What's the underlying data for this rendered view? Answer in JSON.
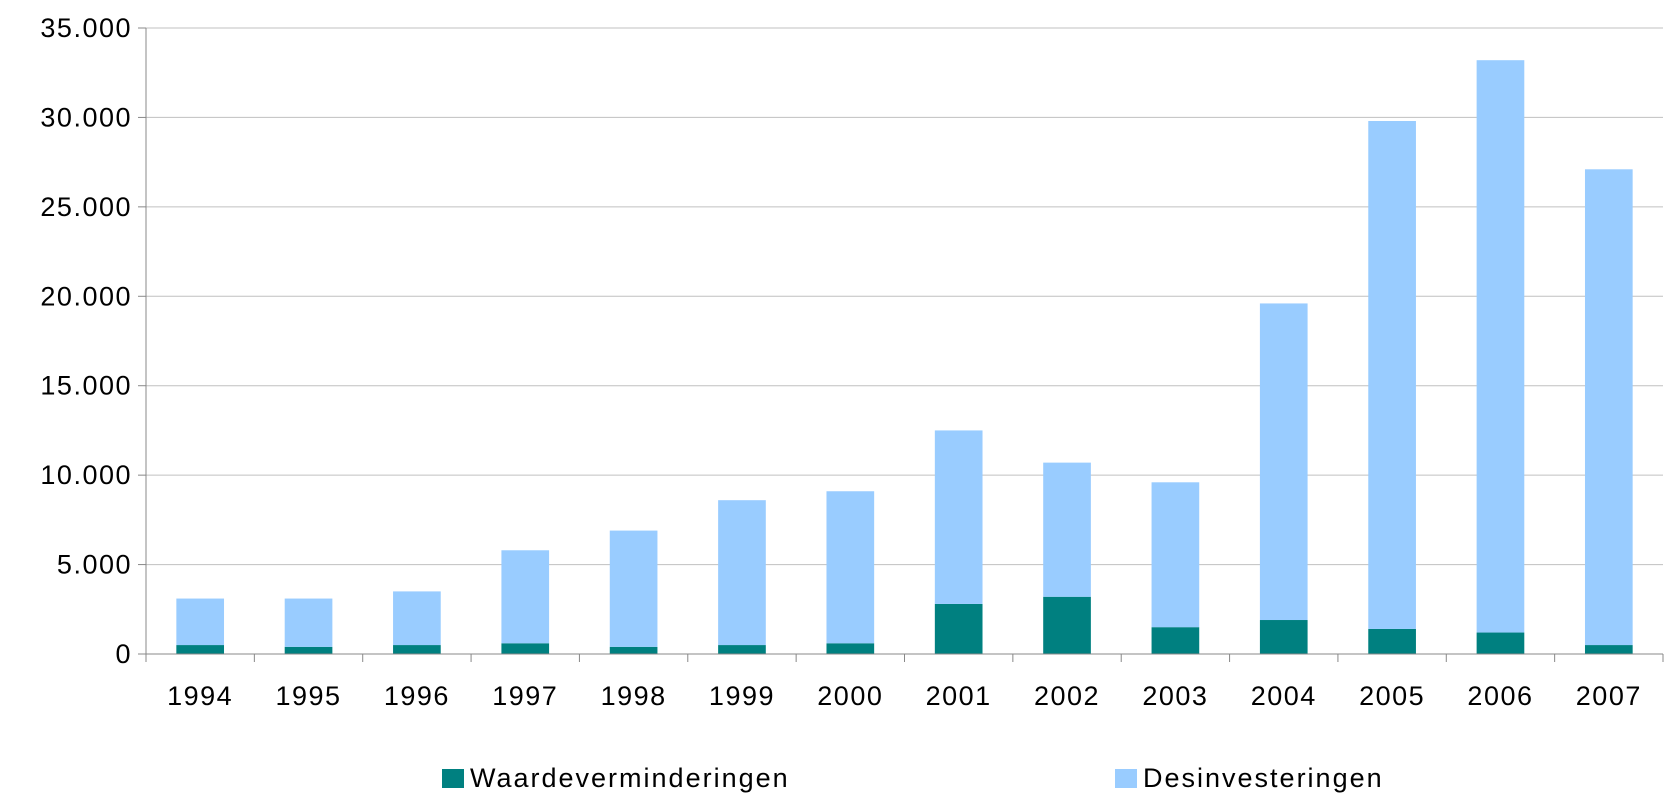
{
  "chart_data": {
    "type": "bar",
    "stacked": true,
    "categories": [
      "1994",
      "1995",
      "1996",
      "1997",
      "1998",
      "1999",
      "2000",
      "2001",
      "2002",
      "2003",
      "2004",
      "2005",
      "2006",
      "2007"
    ],
    "series": [
      {
        "name": "Waardeverminderingen",
        "color": "#008080",
        "values": [
          500,
          400,
          500,
          600,
          400,
          500,
          600,
          2800,
          3200,
          1500,
          1900,
          1400,
          1200,
          500
        ]
      },
      {
        "name": "Desinvesteringen",
        "color": "#99CCFF",
        "values": [
          2600,
          2700,
          3000,
          5200,
          6500,
          8100,
          8500,
          9700,
          7500,
          8100,
          17700,
          28400,
          32000,
          26600
        ]
      }
    ],
    "y_ticks": [
      "0",
      "5.000",
      "10.000",
      "15.000",
      "20.000",
      "25.000",
      "30.000",
      "35.000"
    ],
    "ylim": [
      0,
      35000
    ],
    "ytick_step": 5000,
    "grid": true,
    "legend_position": "bottom"
  }
}
